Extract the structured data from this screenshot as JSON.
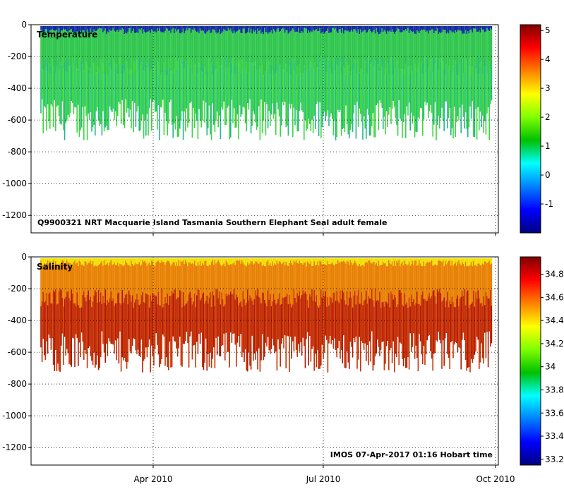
{
  "chart_data": [
    {
      "type": "heatmap",
      "panel_label": "Temperature",
      "caption": "Q9900321 NRT Macquarie Island Tasmania Southern Elephant Seal adult female",
      "x_ticks": [
        "Apr 2010",
        "Jul 2010",
        "Oct 2010"
      ],
      "y_ticks": [
        0,
        -200,
        -400,
        -600,
        -800,
        -1000,
        -1200
      ],
      "ylim": [
        -1310,
        0
      ],
      "colorbar": {
        "range": [
          -2,
          5.2
        ],
        "ticks": [
          5,
          4,
          3,
          2,
          1,
          0,
          -1
        ],
        "colormap": [
          "#000080",
          "#0000ff",
          "#0080ff",
          "#00ffff",
          "#00c000",
          "#80ff00",
          "#ffff00",
          "#ff8000",
          "#ff0000",
          "#800000"
        ]
      },
      "profile_colors": {
        "surface": "#102aa0",
        "upper": "#2ec64c",
        "mid": "#3bd640",
        "deep": "#20b88c"
      },
      "max_depth_typical": -650,
      "grid": true
    },
    {
      "type": "heatmap",
      "panel_label": "Salinity",
      "caption": "IMOS 07-Apr-2017 01:16 Hobart time",
      "x_ticks": [
        "Apr 2010",
        "Jul 2010",
        "Oct 2010"
      ],
      "y_ticks": [
        0,
        -200,
        -400,
        -600,
        -800,
        -1000,
        -1200
      ],
      "ylim": [
        -1310,
        0
      ],
      "colorbar": {
        "range": [
          33.15,
          34.95
        ],
        "ticks": [
          34.8,
          34.6,
          34.4,
          34.2,
          34.0,
          33.8,
          33.6,
          33.4,
          33.2
        ],
        "colormap": [
          "#000080",
          "#0000ff",
          "#0080ff",
          "#00ffff",
          "#00c000",
          "#80ff00",
          "#ffff00",
          "#ff8000",
          "#ff0000",
          "#800000"
        ]
      },
      "profile_colors": {
        "surface": "#f0e000",
        "upper": "#e88000",
        "mid": "#c83000",
        "deep": "#b01800"
      },
      "max_depth_typical": -650,
      "grid": true
    }
  ]
}
